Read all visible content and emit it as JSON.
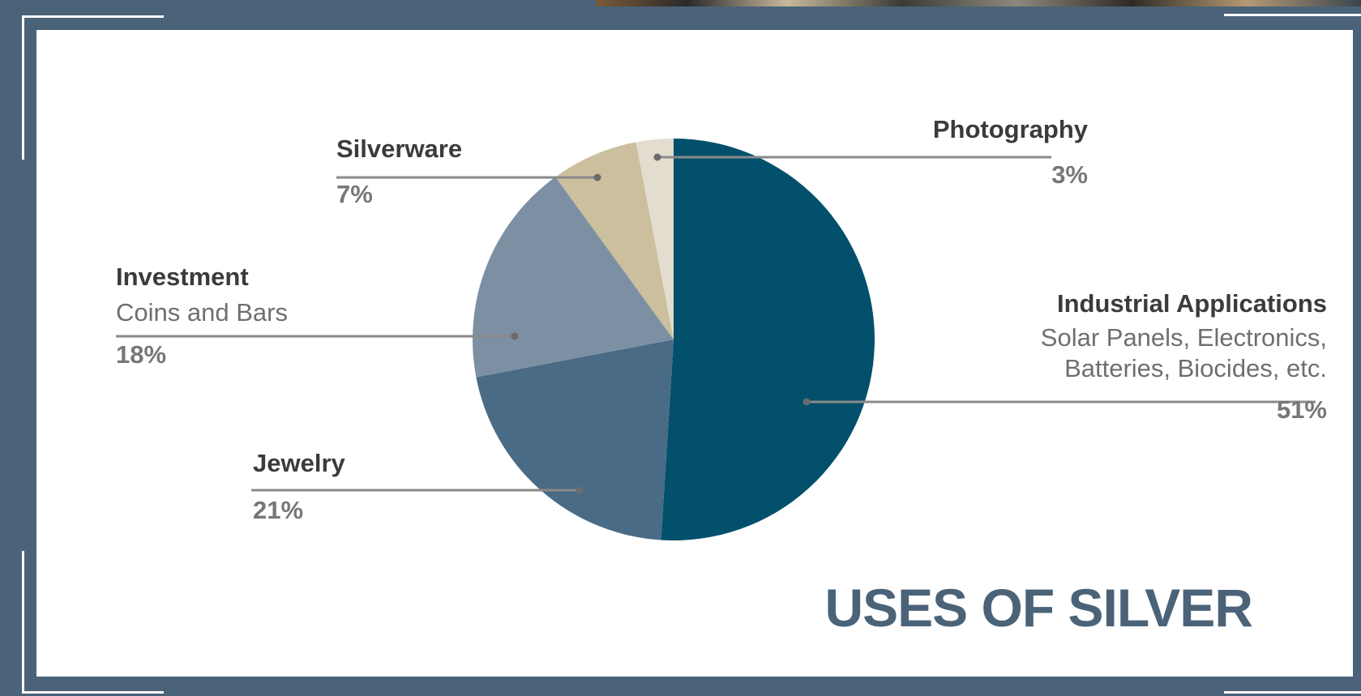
{
  "title": "USES OF SILVER",
  "colors": {
    "frame": "#4a6378",
    "panel": "#ffffff",
    "title": "#4a6378"
  },
  "chart_data": {
    "type": "pie",
    "title": "USES OF SILVER",
    "start": "top, clockwise",
    "slices": [
      {
        "label": "Industrial Applications",
        "sublabel": "Solar Panels, Electronics, Batteries, Biocides, etc.",
        "pct_label": "51%",
        "value": 51,
        "color": "#02506c"
      },
      {
        "label": "Jewelry",
        "sublabel": "",
        "pct_label": "21%",
        "value": 21,
        "color": "#4a6b85"
      },
      {
        "label": "Investment",
        "sublabel": "Coins and Bars",
        "pct_label": "18%",
        "value": 18,
        "color": "#7d90a3"
      },
      {
        "label": "Silverware",
        "sublabel": "",
        "pct_label": "7%",
        "value": 7,
        "color": "#ccbf9d"
      },
      {
        "label": "Photography",
        "sublabel": "",
        "pct_label": "3%",
        "value": 3,
        "color": "#e3ddcf"
      }
    ]
  }
}
